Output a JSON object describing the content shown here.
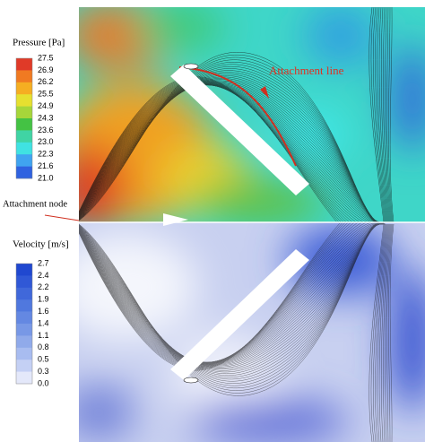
{
  "pressure_legend": {
    "title": "Pressure [Pa]",
    "ticks": [
      "27.5",
      "26.9",
      "26.2",
      "25.5",
      "24.9",
      "24.3",
      "23.6",
      "23.0",
      "22.3",
      "21.6",
      "21.0"
    ]
  },
  "velocity_legend": {
    "title": "Velocity [m/s]",
    "ticks": [
      "2.7",
      "2.4",
      "2.2",
      "1.9",
      "1.6",
      "1.4",
      "1.1",
      "0.8",
      "0.5",
      "0.3",
      "0.0"
    ]
  },
  "annotations": {
    "attachment_line": "Attachment line",
    "attachment_node": "Attachment node"
  }
}
